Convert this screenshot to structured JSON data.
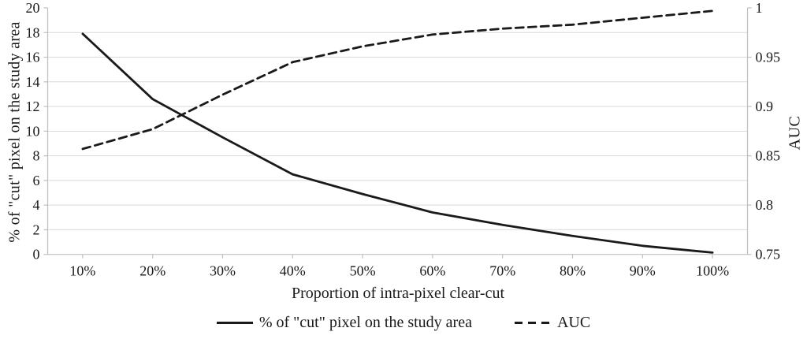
{
  "figure": {
    "background": "#ffffff"
  },
  "colors": {
    "line": "#1a1a1a",
    "grid": "#d9d9d9",
    "axis": "#bfbfbf",
    "text": "#1a1a1a"
  },
  "chart_data": {
    "type": "line",
    "categories": [
      "10%",
      "20%",
      "30%",
      "40%",
      "50%",
      "60%",
      "70%",
      "80%",
      "90%",
      "100%"
    ],
    "series": [
      {
        "name": "% of \"cut\" pixel on the study area",
        "axis": "left",
        "style": "solid",
        "values": [
          17.9,
          12.6,
          9.5,
          6.5,
          4.9,
          3.4,
          2.4,
          1.5,
          0.7,
          0.15
        ]
      },
      {
        "name": "AUC",
        "axis": "right",
        "style": "dashed",
        "values": [
          0.857,
          0.877,
          0.912,
          0.945,
          0.961,
          0.973,
          0.979,
          0.983,
          0.99,
          0.997
        ]
      }
    ],
    "left_axis": {
      "label": "% of \"cut\" pixel on the study area",
      "min": 0,
      "max": 20,
      "step": 2,
      "tick_labels": [
        "0",
        "2",
        "4",
        "6",
        "8",
        "10",
        "12",
        "14",
        "16",
        "18",
        "20"
      ]
    },
    "right_axis": {
      "label": "AUC",
      "min": 0.75,
      "max": 1,
      "step": 0.05,
      "tick_labels": [
        "0.75",
        "0.8",
        "0.85",
        "0.9",
        "0.95",
        "1"
      ]
    },
    "x_axis": {
      "label": "Proportion of intra-pixel clear-cut"
    },
    "grid": "horizontal",
    "legend_position": "bottom"
  },
  "legend": {
    "solid_label": "% of \"cut\" pixel on the study area",
    "dashed_label": "AUC"
  }
}
